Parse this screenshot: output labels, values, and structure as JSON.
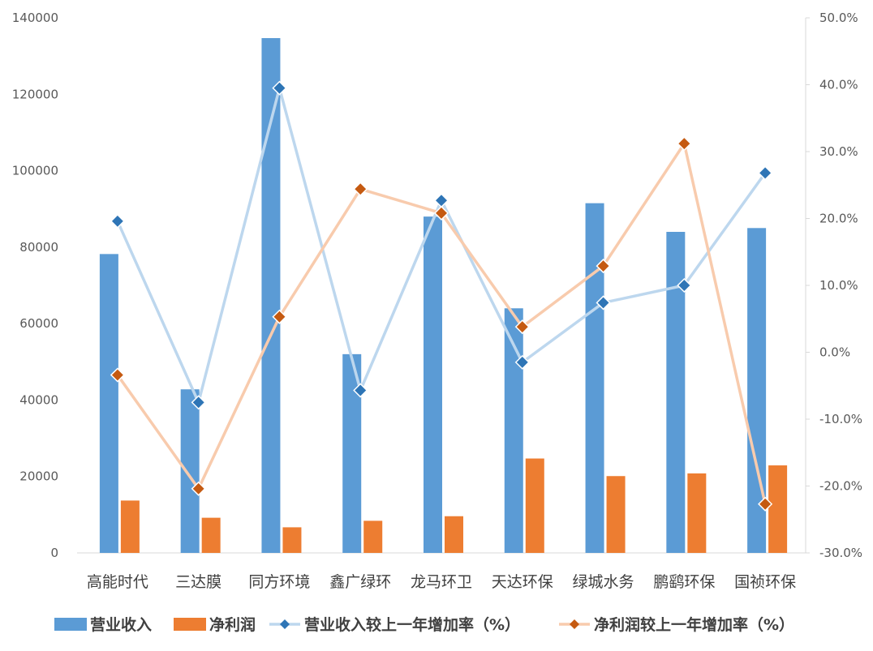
{
  "chart_data": {
    "type": "bar",
    "categories": [
      "高能时代",
      "三达膜",
      "同方环境",
      "鑫广绿环",
      "龙马环卫",
      "天达环保",
      "绿城水务",
      "鹏鹞环保",
      "国祯环保"
    ],
    "series": [
      {
        "name": "营业收入",
        "type": "bar",
        "axis": "left",
        "color": "#5B9BD5",
        "values": [
          78200,
          42800,
          134700,
          52000,
          88000,
          64000,
          91500,
          84000,
          85000
        ]
      },
      {
        "name": "净利润",
        "type": "bar",
        "axis": "left",
        "color": "#ED7D31",
        "values": [
          13700,
          9200,
          6700,
          8400,
          9600,
          24700,
          20100,
          20800,
          22900
        ]
      },
      {
        "name": "营业收入较上一年增加率（%）",
        "type": "line",
        "axis": "right",
        "color": "#BDD7EE",
        "marker_color": "#2E75B6",
        "values": [
          19.6,
          -7.5,
          39.5,
          -5.7,
          22.7,
          -1.5,
          7.4,
          10.0,
          26.8
        ]
      },
      {
        "name": "净利润较上一年增加率（%）",
        "type": "line",
        "axis": "right",
        "color": "#F8CBAD",
        "marker_color": "#C55A11",
        "values": [
          -3.4,
          -20.4,
          5.3,
          24.4,
          20.8,
          3.8,
          12.9,
          31.2,
          -22.7
        ]
      }
    ],
    "y_left": {
      "min": 0,
      "max": 140000,
      "step": 20000,
      "ticks": [
        "0",
        "20000",
        "40000",
        "60000",
        "80000",
        "100000",
        "120000",
        "140000"
      ]
    },
    "y_right": {
      "min": -30,
      "max": 50,
      "step": 10,
      "ticks": [
        "-30.0%",
        "-20.0%",
        "-10.0%",
        "0.0%",
        "10.0%",
        "20.0%",
        "30.0%",
        "40.0%",
        "50.0%"
      ]
    },
    "grid": false,
    "legend_position": "bottom"
  }
}
